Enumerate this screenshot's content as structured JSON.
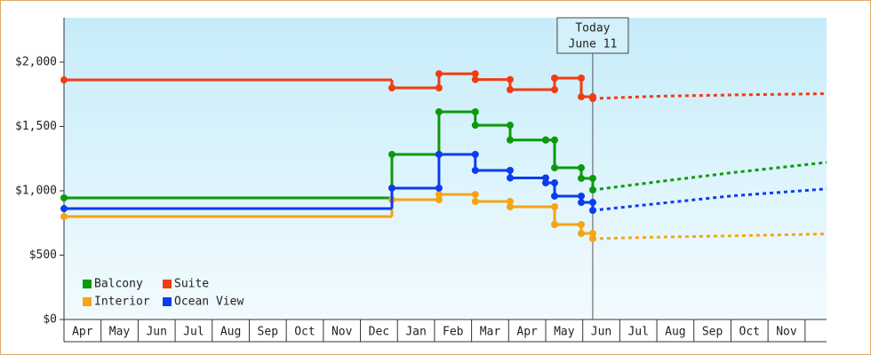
{
  "chart_data": {
    "type": "step",
    "months": [
      "Apr",
      "May",
      "Jun",
      "Jul",
      "Aug",
      "Sep",
      "Oct",
      "Nov",
      "Dec",
      "Jan",
      "Feb",
      "Mar",
      "Apr",
      "May",
      "Jun",
      "Jul",
      "Aug",
      "Sep",
      "Oct",
      "Nov"
    ],
    "xlim": [
      0,
      20.58
    ],
    "ylim": [
      0,
      2345
    ],
    "yticks": [
      {
        "value": 0,
        "label": "$0"
      },
      {
        "value": 500,
        "label": "$500"
      },
      {
        "value": 1000,
        "label": "$1,000"
      },
      {
        "value": 1500,
        "label": "$1,500"
      },
      {
        "value": 2000,
        "label": "$2,000"
      }
    ],
    "legend": "lower left",
    "annotation": {
      "lines": [
        "Today",
        "June 11"
      ],
      "x": 14.27
    },
    "series": [
      {
        "name": "Balcony",
        "color": "#0c9a0c",
        "x": [
          0,
          8.85,
          10.12,
          11.1,
          12.04,
          13.0,
          13.24,
          13.96,
          14.27
        ],
        "values": [
          945,
          1283,
          1614,
          1510,
          1395,
          1395,
          1179,
          1097,
          1007
        ],
        "forecast_x": [
          14.27,
          16,
          18,
          20.58
        ],
        "forecast_values": [
          1007,
          1070,
          1140,
          1221
        ]
      },
      {
        "name": "Suite",
        "color": "#f03c12",
        "x": [
          0,
          8.85,
          10.12,
          11.1,
          12.04,
          13.24,
          13.96,
          14.27
        ],
        "values": [
          1862,
          1800,
          1910,
          1865,
          1786,
          1876,
          1731,
          1717
        ],
        "forecast_x": [
          14.27,
          16,
          18,
          20.58
        ],
        "forecast_values": [
          1717,
          1735,
          1745,
          1755
        ]
      },
      {
        "name": "Interior",
        "color": "#f5a514",
        "x": [
          0,
          8.85,
          10.12,
          11.1,
          12.04,
          13.24,
          13.96,
          14.27
        ],
        "values": [
          800,
          931,
          972,
          917,
          876,
          738,
          669,
          628
        ],
        "forecast_x": [
          14.27,
          16,
          18,
          20.58
        ],
        "forecast_values": [
          628,
          640,
          650,
          665
        ]
      },
      {
        "name": "Ocean View",
        "color": "#0c3cf0",
        "x": [
          0,
          8.85,
          10.12,
          11.1,
          12.04,
          13.0,
          13.24,
          13.96,
          14.27
        ],
        "values": [
          862,
          1021,
          1283,
          1159,
          1100,
          1062,
          959,
          910,
          848
        ],
        "forecast_x": [
          14.27,
          16,
          18,
          20.58
        ],
        "forecast_values": [
          848,
          900,
          960,
          1015
        ]
      }
    ]
  }
}
